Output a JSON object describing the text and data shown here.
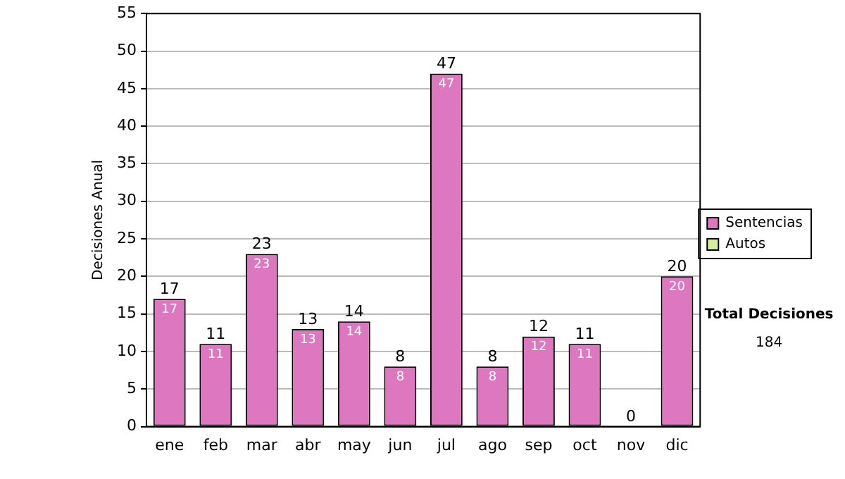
{
  "chart_data": {
    "type": "bar",
    "stacked": true,
    "ylabel": "Decisiones Anual",
    "categories": [
      "ene",
      "feb",
      "mar",
      "abr",
      "may",
      "jun",
      "jul",
      "ago",
      "sep",
      "oct",
      "nov",
      "dic"
    ],
    "series": [
      {
        "name": "Sentencias",
        "color": "#dd77c0",
        "values": [
          17,
          11,
          23,
          13,
          14,
          8,
          47,
          8,
          12,
          11,
          0,
          20
        ],
        "value_labels": [
          "17",
          "11",
          "23",
          "13",
          "14",
          "8",
          "47",
          "8",
          "12",
          "11",
          null,
          "20"
        ]
      },
      {
        "name": "Autos",
        "color": "#d4ee9c",
        "values": [
          0,
          0,
          0,
          0,
          0,
          0,
          0,
          0,
          0,
          0,
          0,
          0
        ]
      }
    ],
    "totals": [
      "17",
      "11",
      "23",
      "13",
      "14",
      "8",
      "47",
      "8",
      "12",
      "11",
      "0",
      "20"
    ],
    "ylim": [
      0,
      55
    ],
    "yticks": [
      0,
      5,
      10,
      15,
      20,
      25,
      30,
      35,
      40,
      45,
      50,
      55
    ],
    "grid": "y",
    "legend": "right",
    "annotations": [
      "Total Decisiones",
      "184"
    ]
  }
}
